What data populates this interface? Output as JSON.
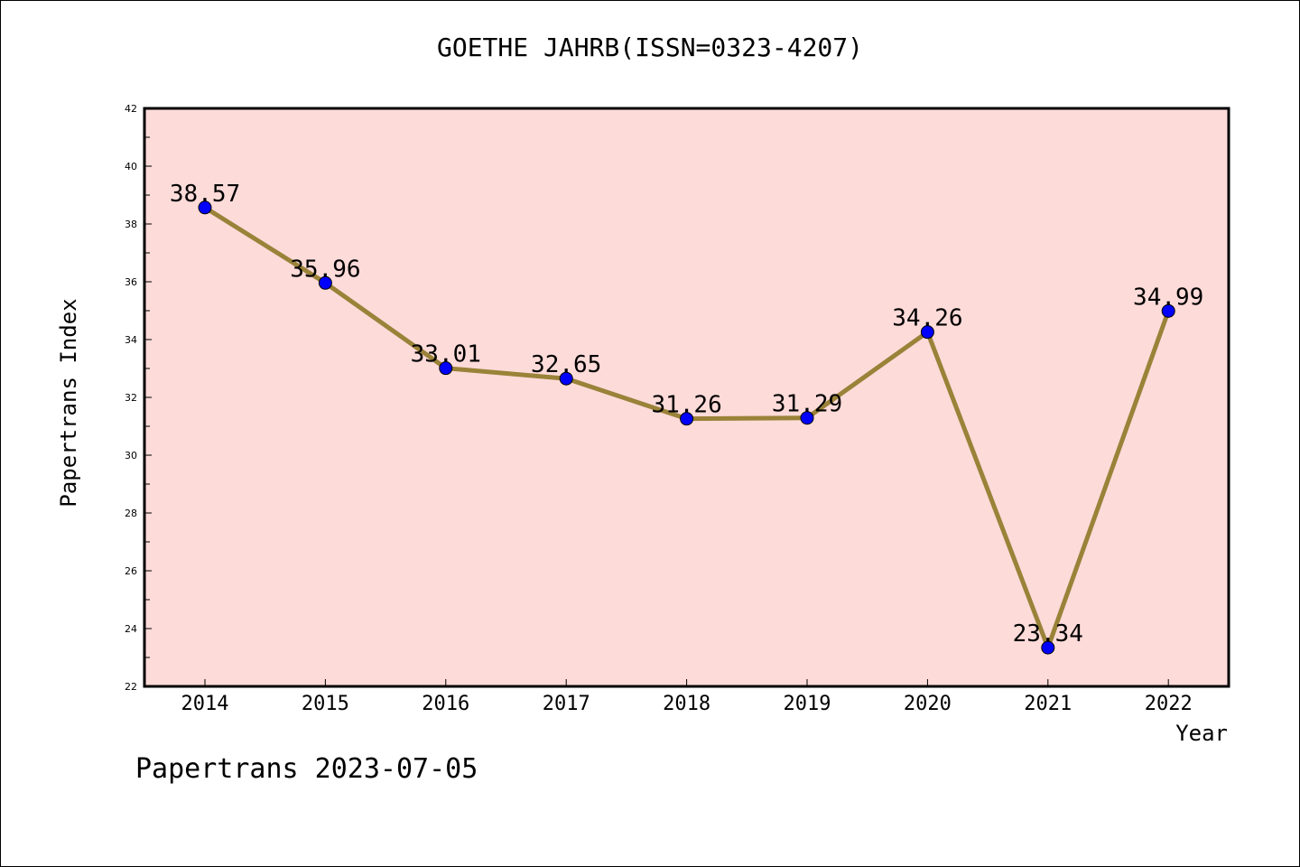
{
  "chart_data": {
    "type": "line",
    "title": "GOETHE JAHRB(ISSN=0323-4207)",
    "xlabel": "Year",
    "ylabel": "Papertrans Index",
    "categories": [
      "2014",
      "2015",
      "2016",
      "2017",
      "2018",
      "2019",
      "2020",
      "2021",
      "2022"
    ],
    "values": [
      38.57,
      35.96,
      33.01,
      32.65,
      31.26,
      31.29,
      34.26,
      23.34,
      34.99
    ],
    "data_labels": [
      "38.57",
      "35.96",
      "33.01",
      "32.65",
      "31.26",
      "31.29",
      "34.26",
      "23.34",
      "34.99"
    ],
    "ylim": [
      22,
      42
    ],
    "yticks": [
      "22",
      "24",
      "26",
      "28",
      "30",
      "32",
      "34",
      "36",
      "38",
      "40",
      "42"
    ],
    "grid": false,
    "colors": {
      "plot_background": "#fddbd9",
      "line": "#9a8239",
      "marker": "#0000ff"
    }
  },
  "footer": "Papertrans 2023-07-05"
}
